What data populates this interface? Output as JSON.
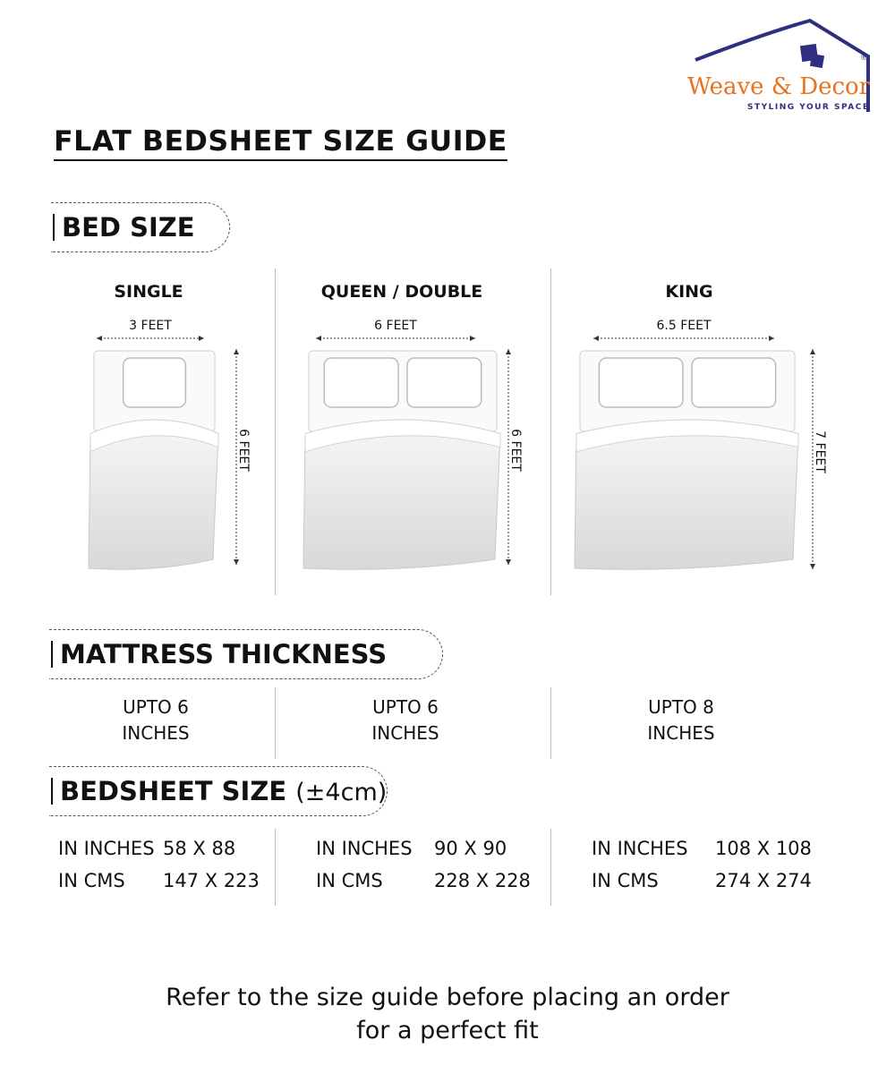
{
  "logo": {
    "brand": "Weave & Decor",
    "tagline": "STYLING YOUR SPACE",
    "registered": "®",
    "colors": {
      "roof": "#2e2f7f",
      "text": "#e8731e"
    }
  },
  "title": "FLAT BEDSHEET SIZE GUIDE",
  "sections": {
    "bed_size": "BED SIZE",
    "mattress": "MATTRESS THICKNESS",
    "bedsheet": "BEDSHEET SIZE",
    "bedsheet_tolerance": "(±4cm)"
  },
  "columns": [
    {
      "name": "SINGLE",
      "width": "3 FEET",
      "length": "6 FEET",
      "pillows": 1,
      "mattress": [
        "UPTO 6",
        "INCHES"
      ],
      "inches_label": "IN INCHES",
      "inches": "58 X 88",
      "cms_label": "IN CMS",
      "cms": "147 X 223"
    },
    {
      "name": "QUEEN / DOUBLE",
      "width": "6 FEET",
      "length": "6 FEET",
      "pillows": 2,
      "mattress": [
        "UPTO 6",
        "INCHES"
      ],
      "inches_label": "IN INCHES",
      "inches": "90 X 90",
      "cms_label": "IN CMS",
      "cms": "228 X 228"
    },
    {
      "name": "KING",
      "width": "6.5 FEET",
      "length": "7 FEET",
      "pillows": 2,
      "mattress": [
        "UPTO 8",
        "INCHES"
      ],
      "inches_label": "IN INCHES",
      "inches": "108 X 108",
      "cms_label": "IN CMS",
      "cms": "274 X 274"
    }
  ],
  "footer": [
    "Refer to the size guide before placing an order",
    "for a perfect fit"
  ]
}
